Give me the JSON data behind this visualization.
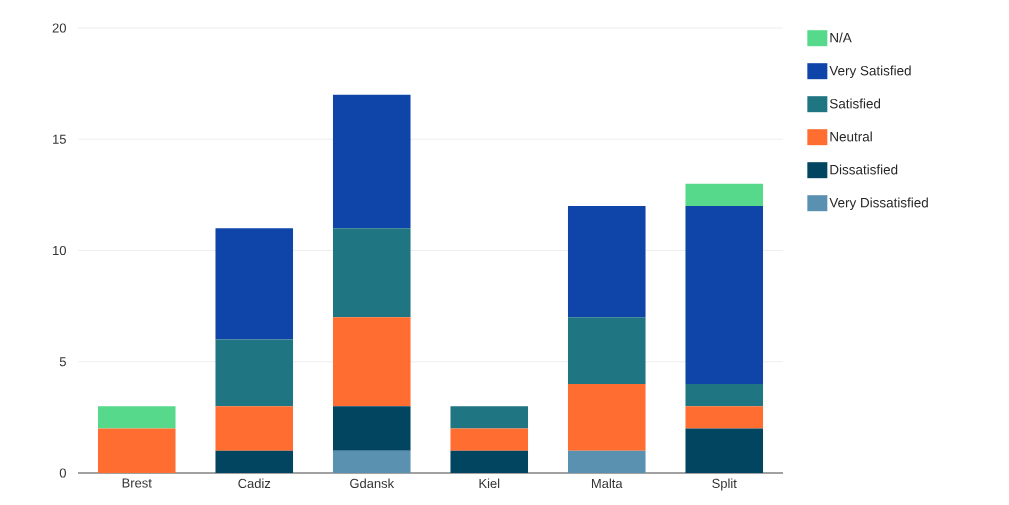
{
  "chart_data": {
    "type": "bar",
    "stacked": true,
    "categories": [
      "Brest",
      "Cadiz",
      "Gdansk",
      "Kiel",
      "Malta",
      "Split"
    ],
    "series": [
      {
        "name": "Very Dissatisfied",
        "color": "#5a91b0",
        "values": [
          0,
          0,
          1,
          0,
          1,
          0
        ]
      },
      {
        "name": "Dissatisfied",
        "color": "#014561",
        "values": [
          0,
          1,
          2,
          1,
          0,
          2
        ]
      },
      {
        "name": "Neutral",
        "color": "#ff6d31",
        "values": [
          2,
          2,
          4,
          1,
          3,
          1
        ]
      },
      {
        "name": "Satisfied",
        "color": "#1f7582",
        "values": [
          0,
          3,
          4,
          1,
          3,
          1
        ]
      },
      {
        "name": "Very Satisfied",
        "color": "#0f45a8",
        "values": [
          0,
          5,
          6,
          0,
          5,
          8
        ]
      },
      {
        "name": "N/A",
        "color": "#57d98c",
        "values": [
          1,
          0,
          0,
          0,
          0,
          1
        ]
      }
    ],
    "ylim": [
      0,
      20
    ],
    "yticks": [
      0,
      5,
      10,
      15,
      20
    ],
    "grid": "y",
    "legend": "right"
  }
}
